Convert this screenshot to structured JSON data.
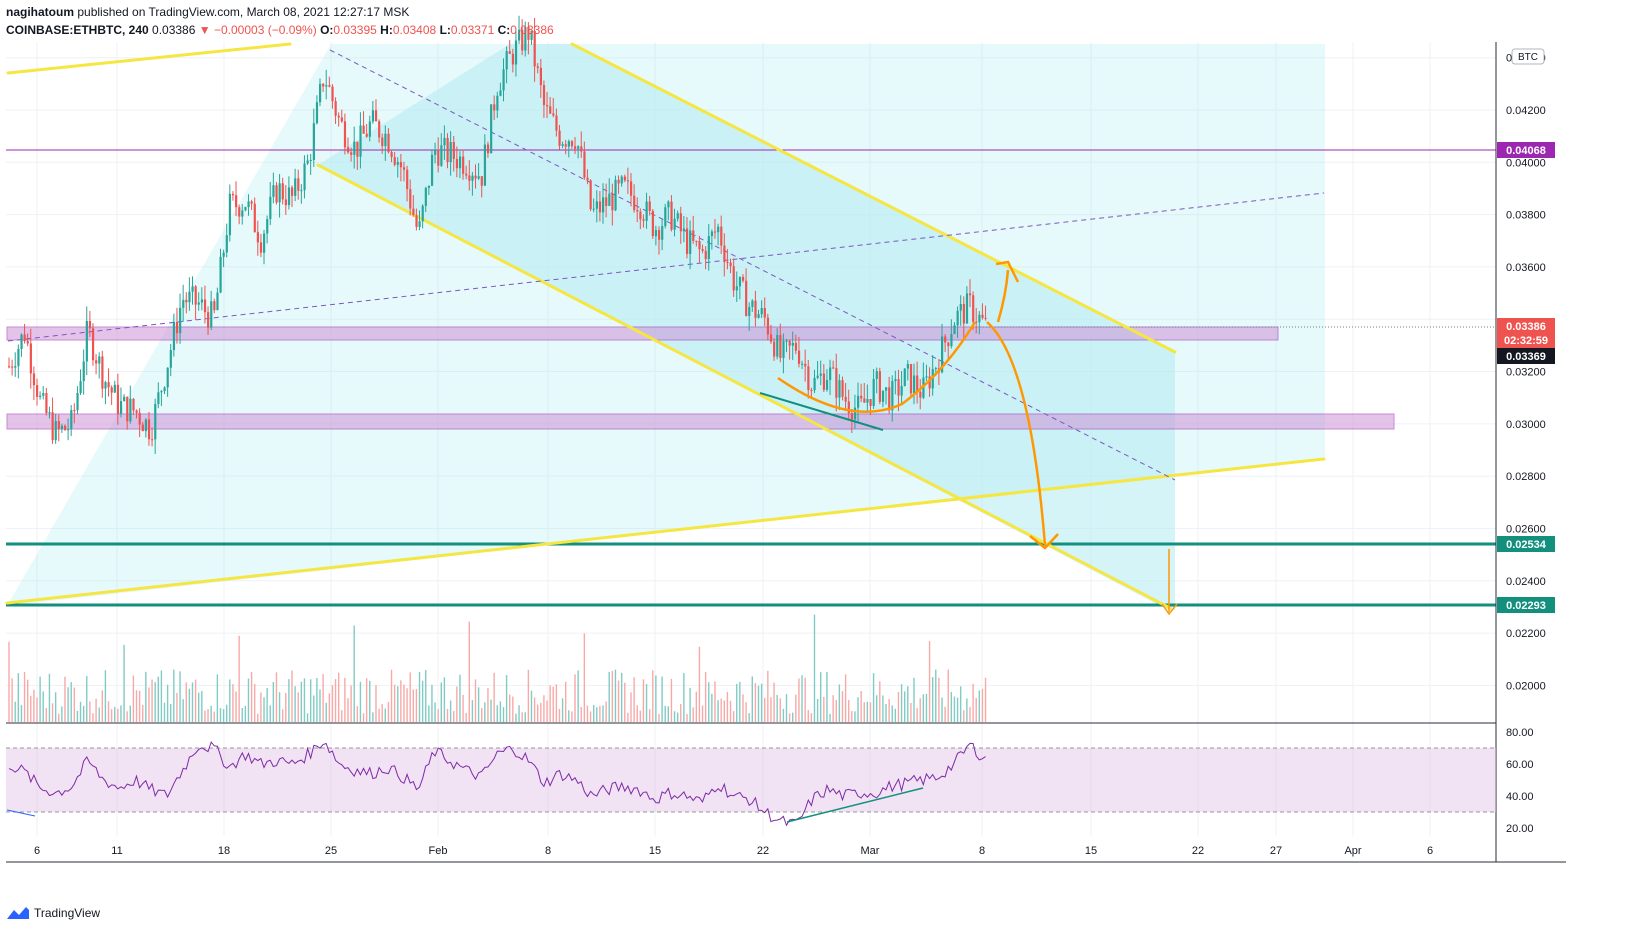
{
  "header": {
    "author": "nagihatoum",
    "published": "published on TradingView.com, March 08, 2021 12:27:17 MSK",
    "symbol": "COINBASE:ETHBTC, 240",
    "last": "0.03386",
    "change": "▼ −0.00003 (−0.09%)",
    "open_label": "O:",
    "open": "0.03395",
    "high_label": "H:",
    "high": "0.03408",
    "low_label": "L:",
    "low": "0.03371",
    "close_label": "C:",
    "close": "0.03386"
  },
  "footer": {
    "brand": "TradingView"
  },
  "colors": {
    "up": "#26a69a",
    "down": "#ef5350",
    "channel": "#f5e642",
    "zone": "#ce93d8",
    "support": "#138f7e",
    "arrow": "#ff9800",
    "rsi": "#7e2ba6",
    "resistance": "#9c27b0"
  },
  "chart_data": {
    "type": "candlestick",
    "currency": "BTC",
    "x_tick_labels": [
      "6",
      "11",
      "18",
      "25",
      "Feb",
      "8",
      "15",
      "22",
      "Mar",
      "8",
      "15",
      "22",
      "27",
      "Apr",
      "6"
    ],
    "y_tick_labels": [
      "0.04400",
      "0.04200",
      "0.04000",
      "0.03800",
      "0.03600",
      "0.03200",
      "0.03000",
      "0.02800",
      "0.02600",
      "0.02400",
      "0.02200",
      "0.02000"
    ],
    "ylim": [
      0.0186,
      0.0446
    ],
    "price_labels": {
      "resistance": "0.04068",
      "current": "0.03386",
      "countdown": "02:32:59",
      "low": "0.03369",
      "target_1": "0.02534",
      "target_2": "0.02293"
    },
    "price_path": [
      0.0322,
      0.0335,
      0.0308,
      0.0296,
      0.03,
      0.0336,
      0.0318,
      0.0307,
      0.0305,
      0.0298,
      0.0322,
      0.0348,
      0.0346,
      0.034,
      0.0383,
      0.0385,
      0.0371,
      0.039,
      0.0386,
      0.04,
      0.0434,
      0.0415,
      0.0405,
      0.0415,
      0.041,
      0.0397,
      0.0372,
      0.0405,
      0.0403,
      0.04,
      0.0395,
      0.043,
      0.0442,
      0.045,
      0.042,
      0.041,
      0.041,
      0.038,
      0.0385,
      0.039,
      0.0385,
      0.0375,
      0.038,
      0.037,
      0.0365,
      0.0375,
      0.0355,
      0.0345,
      0.034,
      0.0325,
      0.033,
      0.0315,
      0.032,
      0.031,
      0.0305,
      0.0315,
      0.031,
      0.0318,
      0.0312,
      0.0325,
      0.034,
      0.0345,
      0.0337
    ],
    "rsi": {
      "ticks": [
        "80.00",
        "60.00",
        "40.00",
        "20.00"
      ],
      "ylim": [
        15,
        85
      ],
      "band": [
        30,
        70
      ],
      "values": [
        60,
        55,
        45,
        42,
        46,
        62,
        50,
        45,
        50,
        44,
        40,
        56,
        72,
        70,
        58,
        66,
        60,
        62,
        60,
        66,
        75,
        60,
        56,
        54,
        58,
        52,
        44,
        68,
        62,
        56,
        52,
        66,
        70,
        62,
        48,
        54,
        50,
        40,
        44,
        46,
        44,
        38,
        42,
        40,
        36,
        48,
        40,
        38,
        30,
        24,
        22,
        38,
        44,
        40,
        42,
        42,
        46,
        48,
        50,
        52,
        60,
        72,
        63
      ]
    }
  }
}
